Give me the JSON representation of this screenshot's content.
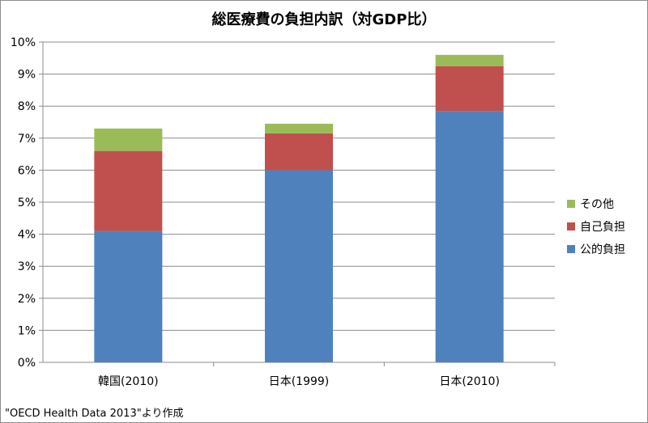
{
  "chart_data": {
    "type": "bar",
    "stacked": true,
    "title": "総医療費の負担内訳（対GDP比）",
    "categories": [
      "韓国(2010)",
      "日本(1999)",
      "日本(2010)"
    ],
    "series": [
      {
        "name": "公的負担",
        "color": "#4f81bd",
        "values": [
          4.1,
          6.0,
          7.85
        ]
      },
      {
        "name": "自己負担",
        "color": "#c0504d",
        "values": [
          2.5,
          1.15,
          1.4
        ]
      },
      {
        "name": "その他",
        "color": "#9bbb59",
        "values": [
          0.7,
          0.3,
          0.35
        ]
      }
    ],
    "y_ticks": [
      "0%",
      "1%",
      "2%",
      "3%",
      "4%",
      "5%",
      "6%",
      "7%",
      "8%",
      "9%",
      "10%"
    ],
    "ylim": [
      0,
      10
    ],
    "grid": true,
    "legend_position": "right"
  },
  "source_note": "\"OECD Health Data 2013\"より作成"
}
